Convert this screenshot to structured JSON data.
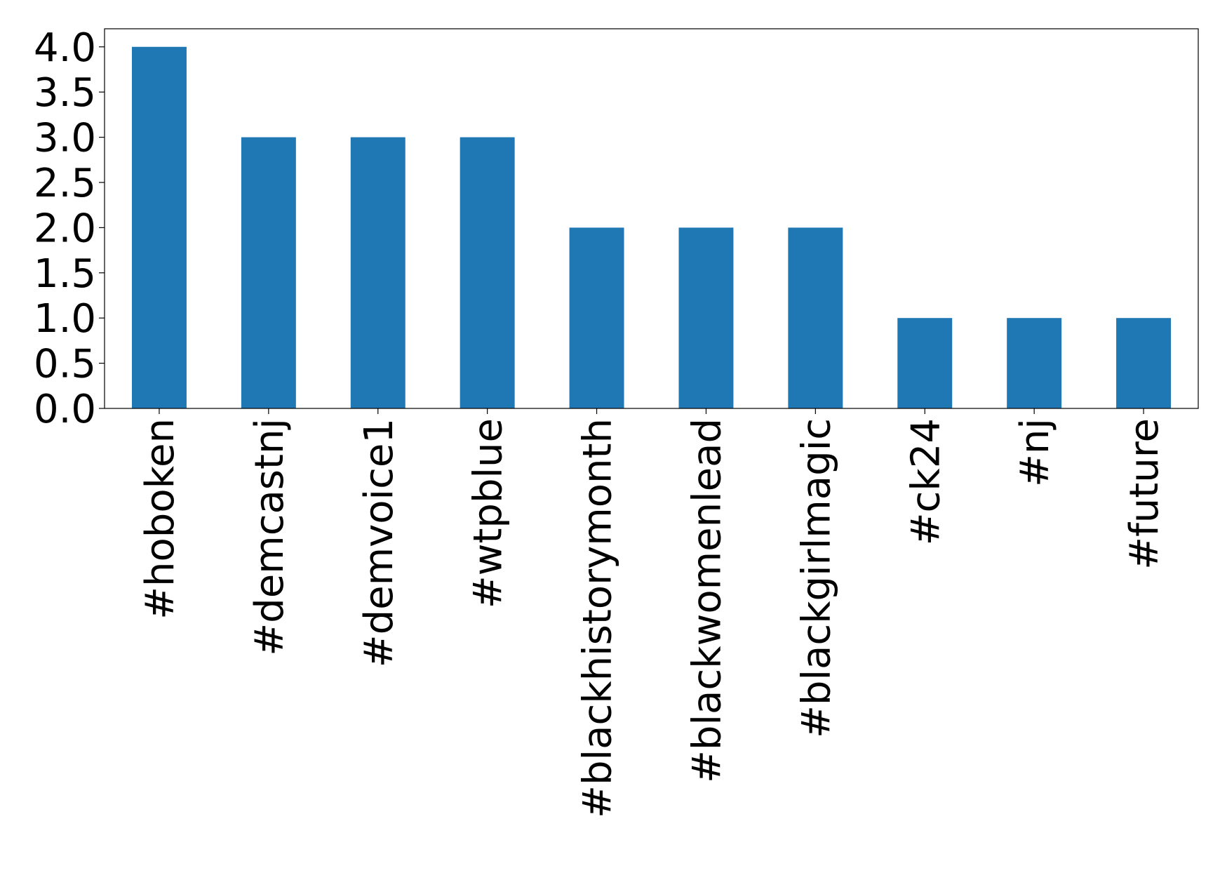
{
  "chart_data": {
    "type": "bar",
    "categories": [
      "#hoboken",
      "#demcastnj",
      "#demvoice1",
      "#wtpblue",
      "#blackhistorymonth",
      "#blackwomenlead",
      "#blackgirlmagic",
      "#ck24",
      "#nj",
      "#future"
    ],
    "values": [
      4,
      3,
      3,
      3,
      2,
      2,
      2,
      1,
      1,
      1
    ],
    "color": "#1f77b4",
    "ylim": [
      0,
      4.2
    ],
    "yticks": [
      {
        "value": 0,
        "label": "0.0"
      },
      {
        "value": 0.5,
        "label": "0.5"
      },
      {
        "value": 1,
        "label": "1.0"
      },
      {
        "value": 1.5,
        "label": "1.5"
      },
      {
        "value": 2,
        "label": "2.0"
      },
      {
        "value": 2.5,
        "label": "2.5"
      },
      {
        "value": 3,
        "label": "3.0"
      },
      {
        "value": 3.5,
        "label": "3.5"
      },
      {
        "value": 4,
        "label": "4.0"
      }
    ],
    "grid": false
  }
}
